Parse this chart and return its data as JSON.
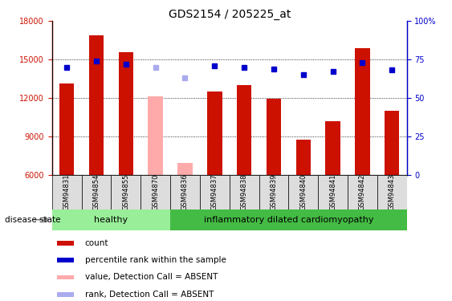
{
  "title": "GDS2154 / 205225_at",
  "samples": [
    "GSM94831",
    "GSM94854",
    "GSM94855",
    "GSM94870",
    "GSM94836",
    "GSM94837",
    "GSM94838",
    "GSM94839",
    "GSM94840",
    "GSM94841",
    "GSM94842",
    "GSM94843"
  ],
  "counts": [
    13100,
    16900,
    15600,
    null,
    null,
    12500,
    13000,
    11900,
    8700,
    10200,
    15900,
    11000
  ],
  "absent_counts": [
    null,
    null,
    null,
    12100,
    6900,
    null,
    null,
    null,
    null,
    null,
    null,
    null
  ],
  "percentile_ranks": [
    70,
    74,
    72,
    null,
    null,
    71,
    70,
    69,
    65,
    67,
    73,
    68
  ],
  "absent_ranks": [
    null,
    null,
    null,
    70,
    63,
    null,
    null,
    null,
    null,
    null,
    null,
    null
  ],
  "ylim_left": [
    6000,
    18000
  ],
  "ylim_right": [
    0,
    100
  ],
  "yticks_left": [
    6000,
    9000,
    12000,
    15000,
    18000
  ],
  "yticks_right": [
    0,
    25,
    50,
    75,
    100
  ],
  "bar_color": "#cc1100",
  "absent_bar_color": "#ffaaaa",
  "dot_color": "#0000cc",
  "absent_dot_color": "#aaaaee",
  "healthy_color": "#99ee99",
  "disease_color": "#44bb44",
  "healthy_label": "healthy",
  "disease_label": "inflammatory dilated cardiomyopathy",
  "disease_state_label": "disease state",
  "n_healthy": 4,
  "n_disease": 8,
  "legend_items": [
    {
      "label": "count",
      "color": "#cc1100"
    },
    {
      "label": "percentile rank within the sample",
      "color": "#0000cc"
    },
    {
      "label": "value, Detection Call = ABSENT",
      "color": "#ffaaaa"
    },
    {
      "label": "rank, Detection Call = ABSENT",
      "color": "#aaaaee"
    }
  ]
}
